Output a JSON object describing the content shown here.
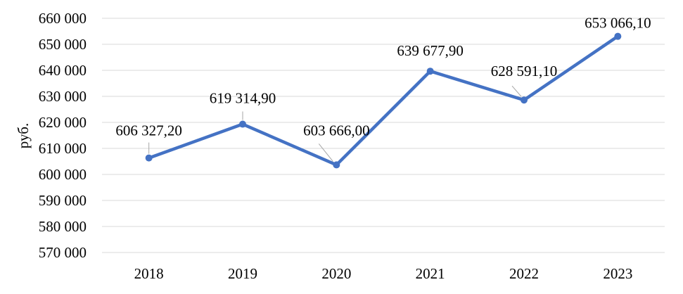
{
  "chart_data": {
    "type": "line",
    "ylabel": "руб.",
    "ylim": [
      570000,
      660000
    ],
    "y_ticks": [
      "570 000",
      "580 000",
      "590 000",
      "600 000",
      "610 000",
      "620 000",
      "630 000",
      "640 000",
      "650 000",
      "660 000"
    ],
    "categories": [
      "2018",
      "2019",
      "2020",
      "2021",
      "2022",
      "2023"
    ],
    "series": [
      {
        "values": [
          606327.2,
          619314.9,
          603666.0,
          639677.9,
          628591.1,
          653066.1
        ],
        "labels": [
          "606 327,20",
          "619 314,90",
          "603 666,00",
          "639 677,90",
          "628 591,10",
          "653 066,10"
        ],
        "color": "#4472C4"
      }
    ],
    "grid": true,
    "legend": "none"
  }
}
